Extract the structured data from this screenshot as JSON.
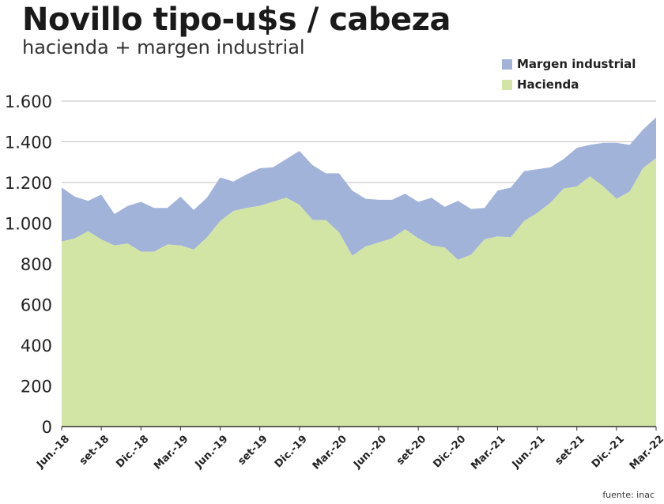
{
  "title": "Novillo tipo-u$s / cabeza",
  "subtitle": "hacienda + margen industrial",
  "source": "fuente: inac",
  "chart_data": {
    "type": "area",
    "stacked": true,
    "ylim": [
      0,
      1600
    ],
    "yticks": [
      0,
      200,
      400,
      600,
      800,
      1000,
      1200,
      1400,
      1600
    ],
    "ytick_labels": [
      "0",
      "200",
      "400",
      "600",
      "800",
      "1.000",
      "1.200",
      "1.400",
      "1.600"
    ],
    "x_labels": [
      "Jun.-18",
      "set-18",
      "Dic.-18",
      "Mar.-19",
      "Jun.-19",
      "set-19",
      "Dic.-19",
      "Mar.-20",
      "Jun.-20",
      "set-20",
      "Dic.-20",
      "Mar.-21",
      "Jun.-21",
      "set-21",
      "Dic.-21",
      "Mar.-22"
    ],
    "grid": "horizontal",
    "legend_position": "top-right",
    "series": [
      {
        "name": "Hacienda",
        "color": "#d3e5a5",
        "values": [
          910,
          925,
          960,
          920,
          890,
          900,
          860,
          860,
          895,
          890,
          870,
          930,
          1010,
          1060,
          1075,
          1085,
          1105,
          1125,
          1090,
          1015,
          1015,
          955,
          840,
          885,
          905,
          925,
          970,
          925,
          890,
          880,
          820,
          845,
          920,
          935,
          930,
          1010,
          1050,
          1100,
          1170,
          1180,
          1230,
          1180,
          1120,
          1155,
          1270,
          1320
        ]
      },
      {
        "name": "Margen industrial",
        "color": "#a2b3d9",
        "values": [
          265,
          205,
          150,
          220,
          155,
          185,
          245,
          215,
          180,
          240,
          195,
          195,
          215,
          145,
          165,
          185,
          170,
          190,
          265,
          270,
          230,
          290,
          320,
          235,
          210,
          190,
          175,
          180,
          235,
          200,
          290,
          225,
          155,
          225,
          245,
          245,
          215,
          175,
          145,
          190,
          155,
          215,
          275,
          230,
          190,
          200
        ]
      }
    ]
  }
}
